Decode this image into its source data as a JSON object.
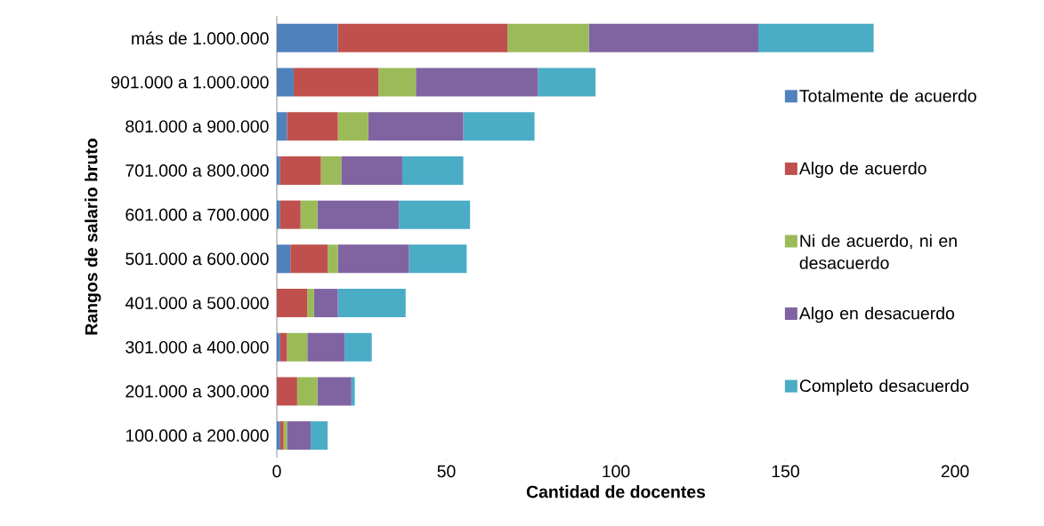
{
  "chart_data": {
    "type": "bar",
    "orientation": "horizontal",
    "stacked": true,
    "categories": [
      "más de 1.000.000",
      "901.000 a 1.000.000",
      "801.000 a 900.000",
      "701.000 a 800.000",
      "601.000 a 700.000",
      "501.000 a 600.000",
      "401.000 a 500.000",
      "301.000 a 400.000",
      "201.000 a 300.000",
      "100.000 a 200.000"
    ],
    "series": [
      {
        "name": "Totalmente de acuerdo",
        "color": "#4f81bd",
        "values": [
          18,
          5,
          3,
          1,
          1,
          4,
          0,
          1,
          0,
          1
        ]
      },
      {
        "name": "Algo de acuerdo",
        "color": "#c0504d",
        "values": [
          50,
          25,
          15,
          12,
          6,
          11,
          9,
          2,
          6,
          1
        ]
      },
      {
        "name": "Ni de acuerdo, ni en desacuerdo",
        "color": "#9bbb59",
        "values": [
          24,
          11,
          9,
          6,
          5,
          3,
          2,
          6,
          6,
          1
        ]
      },
      {
        "name": "Algo en desacuerdo",
        "color": "#8064a2",
        "values": [
          50,
          36,
          28,
          18,
          24,
          21,
          7,
          11,
          10,
          7
        ]
      },
      {
        "name": "Completo desacuerdo",
        "color": "#4bacc6",
        "values": [
          34,
          17,
          21,
          18,
          21,
          17,
          20,
          8,
          1,
          5
        ]
      }
    ],
    "xlim": [
      0,
      200
    ],
    "xticks": [
      0,
      50,
      100,
      150,
      200
    ],
    "xlabel": "Cantidad de docentes",
    "ylabel": "Rangos de salario bruto",
    "legend": "right",
    "grid": false
  }
}
